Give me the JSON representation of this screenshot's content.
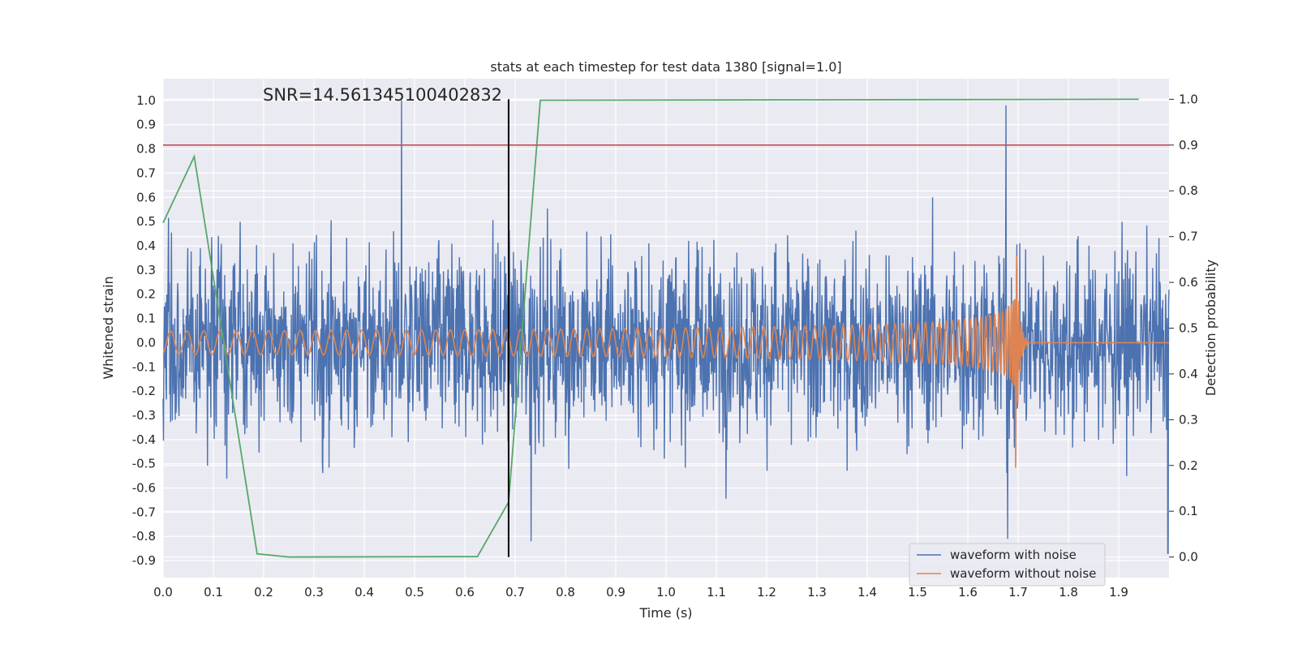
{
  "chart_data": {
    "type": "line",
    "title": "stats at each timestep for test data 1380 [signal=1.0]",
    "xlabel": "Time (s)",
    "ylabel_left": "Whitened strain",
    "ylabel_right": "Detection probability",
    "xlim": [
      0,
      2.0
    ],
    "ylim_left": [
      -0.97,
      1.09
    ],
    "ylim_right": [
      -0.045,
      1.045
    ],
    "x_ticks": [
      "0.0",
      "0.1",
      "0.2",
      "0.3",
      "0.4",
      "0.5",
      "0.6",
      "0.7",
      "0.8",
      "0.9",
      "1.0",
      "1.1",
      "1.2",
      "1.3",
      "1.4",
      "1.5",
      "1.6",
      "1.7",
      "1.8",
      "1.9"
    ],
    "y_ticks_left": [
      "1.0",
      "0.9",
      "0.8",
      "0.7",
      "0.6",
      "0.5",
      "0.4",
      "0.3",
      "0.2",
      "0.1",
      "0.0",
      "-0.1",
      "-0.2",
      "-0.3",
      "-0.4",
      "-0.5",
      "-0.6",
      "-0.7",
      "-0.8",
      "-0.9"
    ],
    "y_ticks_right": [
      "1.0",
      "0.9",
      "0.8",
      "0.7",
      "0.6",
      "0.5",
      "0.4",
      "0.3",
      "0.2",
      "0.1",
      "0.0"
    ],
    "annotation": "SNR=14.561345100402832",
    "detection_time": 0.687,
    "threshold_probability": 0.9,
    "series": [
      {
        "name": "waveform with noise",
        "axis": "left",
        "color": "#4c72b0",
        "kind": "noisy",
        "std": 0.19,
        "spikes": [
          [
            0.474,
            1.0
          ],
          [
            1.676,
            0.98
          ],
          [
            1.679,
            -0.81
          ],
          [
            0.732,
            -0.82
          ],
          [
            1.998,
            -0.87
          ]
        ]
      },
      {
        "name": "waveform without noise",
        "axis": "left",
        "color": "#dd8452",
        "kind": "chirp",
        "start_amplitude": 0.048,
        "end_amplitude": 0.43,
        "merger_time": 1.695,
        "ringdown_end": 1.72
      },
      {
        "name": "detection probability",
        "axis": "right",
        "color": "#55a868",
        "x": [
          0.0,
          0.062,
          0.187,
          0.25,
          0.625,
          0.687,
          0.75,
          1.94
        ],
        "y": [
          0.73,
          0.875,
          0.007,
          0.0,
          0.001,
          0.12,
          0.998,
          1.0
        ]
      }
    ],
    "legend": {
      "location": "lower right",
      "entries": [
        {
          "label": "waveform with noise",
          "color": "#4c72b0"
        },
        {
          "label": "waveform without noise",
          "color": "#dd8452"
        }
      ]
    },
    "colors": {
      "background": "#eaeaf2",
      "grid": "#ffffff",
      "threshold": "#c44e52",
      "detection_line": "#000000"
    }
  }
}
